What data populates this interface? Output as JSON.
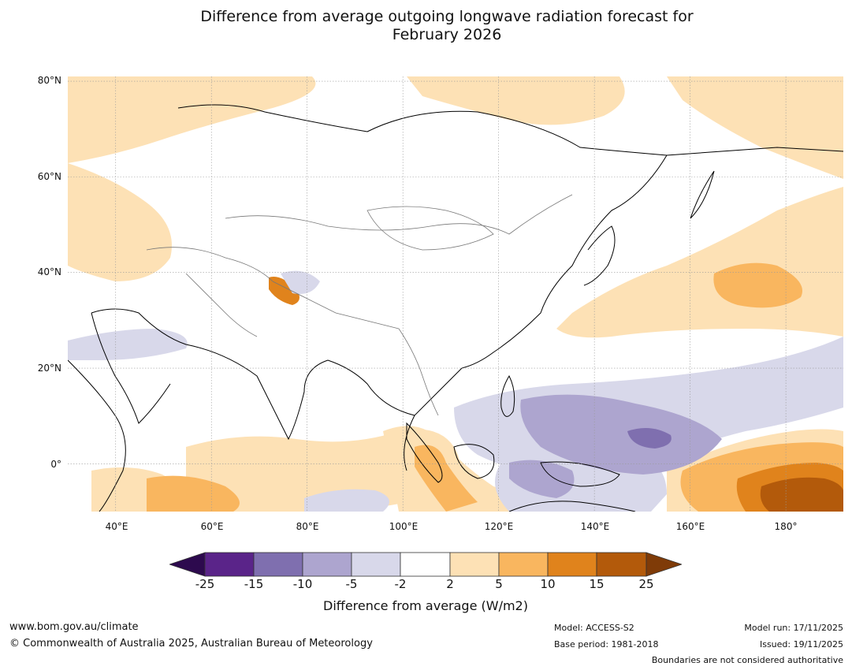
{
  "title": {
    "line1": "Difference from average outgoing longwave radiation forecast for",
    "line2": "February 2026"
  },
  "map": {
    "lat_ticks": [
      "80°N",
      "60°N",
      "40°N",
      "20°N",
      "0°"
    ],
    "lon_ticks": [
      "40°E",
      "60°E",
      "80°E",
      "100°E",
      "120°E",
      "140°E",
      "160°E",
      "180°"
    ],
    "lat_range": [
      -10,
      81
    ],
    "lon_range": [
      30,
      192
    ]
  },
  "colorbar": {
    "ticks": [
      "-25",
      "-15",
      "-10",
      "-5",
      "-2",
      "2",
      "5",
      "10",
      "15",
      "25"
    ],
    "label": "Difference from average (W/m2)",
    "colors": {
      "lt_-25": "#2d0a4e",
      "-25_-15": "#5a2489",
      "-15_-10": "#7f6faf",
      "-10_-5": "#ada5cf",
      "-5_-2": "#d8d8ea",
      "-2_2": "#ffffff",
      "2_5": "#fde1b5",
      "5_10": "#f9b65f",
      "10_15": "#e0831c",
      "15_25": "#b35a0b",
      "gt_25": "#7f3b08"
    }
  },
  "footer": {
    "website": "www.bom.gov.au/climate",
    "copyright": "© Commonwealth of Australia 2025, Australian Bureau of Meteorology",
    "model": "Model: ACCESS-S2",
    "base_period": "Base period: 1981-2018",
    "model_run": "Model run: 17/11/2025",
    "issued": "Issued: 19/11/2025",
    "disclaimer": "Boundaries are not considered authoritative"
  }
}
